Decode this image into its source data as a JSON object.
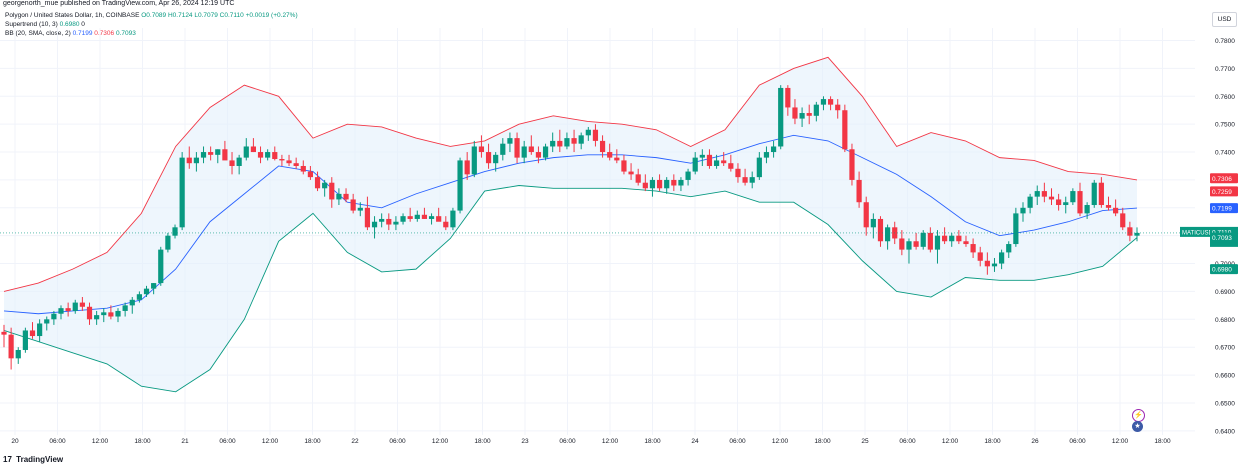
{
  "header": {
    "published": "georgenorth_mue published on TradingView.com, Apr 26, 2024 12:19 UTC"
  },
  "legend": {
    "symbol": "Polygon / United States Dollar, 1h, COINBASE",
    "ohlc": {
      "o": "O0.7089",
      "h": "H0.7124",
      "l": "L0.7079",
      "c": "C0.7110",
      "chg": "+0.0019 (+0.27%)"
    },
    "supertrend": {
      "label": "Supertrend (10, 3)",
      "value": "0.6980",
      "extra": "0"
    },
    "bb": {
      "label": "BB (20, SMA, close, 2)",
      "basis": "0.7199",
      "upper": "0.7306",
      "lower": "0.7093"
    }
  },
  "currency_button": "USD",
  "price_tags": {
    "symbol": "MATICUSD",
    "last": "0.7110",
    "countdown": "40:16",
    "bb_upper": "0.7306",
    "supertrend_red": "0.7259",
    "bb_basis": "0.7199",
    "bb_lower": "0.7093",
    "supertrend": "0.6980"
  },
  "footer": {
    "brand": "TradingView",
    "logo": "tv-logo"
  },
  "icons": [
    "lightning-icon",
    "us-flag-icon"
  ],
  "colors": {
    "up": "#089981",
    "down": "#f23645",
    "bb_upper": "#f23645",
    "bb_basis": "#2962ff",
    "bb_lower": "#089981",
    "fill_up": "#e6f4ea",
    "fill_down": "#fde6e8",
    "band_fill": "#e3f0fb"
  },
  "chart_data": {
    "type": "candlestick",
    "y_ticks": [
      "0.7800",
      "0.7700",
      "0.7600",
      "0.7500",
      "0.7400",
      "0.7300",
      "0.7200",
      "0.7100",
      "0.7000",
      "0.6900",
      "0.6800",
      "0.6700",
      "0.6600",
      "0.6500",
      "0.6400"
    ],
    "x_ticks": [
      "20",
      "06:00",
      "12:00",
      "18:00",
      "21",
      "06:00",
      "12:00",
      "18:00",
      "22",
      "06:00",
      "12:00",
      "18:00",
      "23",
      "06:00",
      "12:00",
      "18:00",
      "24",
      "06:00",
      "12:00",
      "18:00",
      "25",
      "06:00",
      "12:00",
      "18:00",
      "26",
      "06:00",
      "12:00",
      "18:00"
    ],
    "ylim": [
      0.6385,
      0.7845
    ],
    "candles": [
      [
        0.6755,
        0.678,
        0.67,
        0.6745
      ],
      [
        0.6745,
        0.677,
        0.662,
        0.666
      ],
      [
        0.666,
        0.67,
        0.664,
        0.669
      ],
      [
        0.669,
        0.677,
        0.668,
        0.676
      ],
      [
        0.676,
        0.679,
        0.673,
        0.674
      ],
      [
        0.674,
        0.68,
        0.672,
        0.6785
      ],
      [
        0.6785,
        0.681,
        0.676,
        0.68
      ],
      [
        0.68,
        0.683,
        0.678,
        0.682
      ],
      [
        0.682,
        0.685,
        0.68,
        0.684
      ],
      [
        0.684,
        0.686,
        0.681,
        0.683
      ],
      [
        0.683,
        0.687,
        0.682,
        0.686
      ],
      [
        0.686,
        0.688,
        0.683,
        0.6845
      ],
      [
        0.6845,
        0.686,
        0.678,
        0.68
      ],
      [
        0.68,
        0.683,
        0.678,
        0.6815
      ],
      [
        0.6815,
        0.684,
        0.679,
        0.6825
      ],
      [
        0.6825,
        0.685,
        0.68,
        0.681
      ],
      [
        0.681,
        0.684,
        0.679,
        0.683
      ],
      [
        0.683,
        0.686,
        0.681,
        0.685
      ],
      [
        0.685,
        0.688,
        0.682,
        0.687
      ],
      [
        0.687,
        0.69,
        0.686,
        0.689
      ],
      [
        0.689,
        0.692,
        0.688,
        0.691
      ],
      [
        0.691,
        0.693,
        0.689,
        0.693
      ],
      [
        0.693,
        0.706,
        0.692,
        0.705
      ],
      [
        0.705,
        0.711,
        0.704,
        0.71
      ],
      [
        0.71,
        0.714,
        0.709,
        0.713
      ],
      [
        0.713,
        0.74,
        0.712,
        0.738
      ],
      [
        0.738,
        0.742,
        0.734,
        0.736
      ],
      [
        0.736,
        0.74,
        0.733,
        0.738
      ],
      [
        0.738,
        0.742,
        0.736,
        0.74
      ],
      [
        0.74,
        0.742,
        0.737,
        0.739
      ],
      [
        0.739,
        0.741,
        0.736,
        0.741
      ],
      [
        0.741,
        0.744,
        0.738,
        0.737
      ],
      [
        0.737,
        0.74,
        0.732,
        0.735
      ],
      [
        0.735,
        0.739,
        0.732,
        0.738
      ],
      [
        0.738,
        0.745,
        0.737,
        0.742
      ],
      [
        0.742,
        0.745,
        0.74,
        0.74
      ],
      [
        0.74,
        0.742,
        0.736,
        0.738
      ],
      [
        0.738,
        0.741,
        0.737,
        0.74
      ],
      [
        0.74,
        0.742,
        0.737,
        0.7375
      ],
      [
        0.7375,
        0.739,
        0.735,
        0.737
      ],
      [
        0.737,
        0.739,
        0.735,
        0.736
      ],
      [
        0.736,
        0.738,
        0.734,
        0.735
      ],
      [
        0.735,
        0.737,
        0.732,
        0.733
      ],
      [
        0.733,
        0.735,
        0.73,
        0.731
      ],
      [
        0.731,
        0.733,
        0.726,
        0.727
      ],
      [
        0.727,
        0.73,
        0.724,
        0.729
      ],
      [
        0.729,
        0.731,
        0.72,
        0.723
      ],
      [
        0.723,
        0.727,
        0.721,
        0.725
      ],
      [
        0.725,
        0.727,
        0.722,
        0.723
      ],
      [
        0.723,
        0.725,
        0.718,
        0.719
      ],
      [
        0.719,
        0.722,
        0.717,
        0.72
      ],
      [
        0.72,
        0.724,
        0.712,
        0.713
      ],
      [
        0.713,
        0.717,
        0.709,
        0.715
      ],
      [
        0.715,
        0.718,
        0.713,
        0.716
      ],
      [
        0.716,
        0.718,
        0.712,
        0.714
      ],
      [
        0.714,
        0.717,
        0.712,
        0.715
      ],
      [
        0.715,
        0.718,
        0.714,
        0.717
      ],
      [
        0.717,
        0.72,
        0.715,
        0.716
      ],
      [
        0.716,
        0.719,
        0.715,
        0.7175
      ],
      [
        0.7175,
        0.72,
        0.716,
        0.716
      ],
      [
        0.716,
        0.718,
        0.714,
        0.717
      ],
      [
        0.717,
        0.72,
        0.716,
        0.715
      ],
      [
        0.715,
        0.717,
        0.712,
        0.713
      ],
      [
        0.713,
        0.72,
        0.712,
        0.719
      ],
      [
        0.719,
        0.738,
        0.718,
        0.737
      ],
      [
        0.737,
        0.74,
        0.73,
        0.732
      ],
      [
        0.732,
        0.744,
        0.731,
        0.742
      ],
      [
        0.742,
        0.746,
        0.738,
        0.74
      ],
      [
        0.74,
        0.743,
        0.734,
        0.736
      ],
      [
        0.736,
        0.74,
        0.733,
        0.739
      ],
      [
        0.739,
        0.745,
        0.737,
        0.743
      ],
      [
        0.743,
        0.747,
        0.74,
        0.745
      ],
      [
        0.745,
        0.747,
        0.736,
        0.738
      ],
      [
        0.738,
        0.744,
        0.736,
        0.742
      ],
      [
        0.742,
        0.746,
        0.739,
        0.74
      ],
      [
        0.74,
        0.742,
        0.736,
        0.738
      ],
      [
        0.738,
        0.743,
        0.737,
        0.742
      ],
      [
        0.742,
        0.747,
        0.74,
        0.744
      ],
      [
        0.744,
        0.748,
        0.74,
        0.742
      ],
      [
        0.742,
        0.747,
        0.741,
        0.745
      ],
      [
        0.745,
        0.748,
        0.74,
        0.743
      ],
      [
        0.743,
        0.747,
        0.741,
        0.746
      ],
      [
        0.746,
        0.749,
        0.744,
        0.748
      ],
      [
        0.748,
        0.75,
        0.742,
        0.744
      ],
      [
        0.744,
        0.746,
        0.738,
        0.74
      ],
      [
        0.74,
        0.743,
        0.737,
        0.738
      ],
      [
        0.738,
        0.741,
        0.736,
        0.737
      ],
      [
        0.737,
        0.739,
        0.732,
        0.733
      ],
      [
        0.733,
        0.736,
        0.73,
        0.732
      ],
      [
        0.732,
        0.734,
        0.728,
        0.729
      ],
      [
        0.729,
        0.732,
        0.726,
        0.727
      ],
      [
        0.727,
        0.731,
        0.724,
        0.73
      ],
      [
        0.73,
        0.732,
        0.726,
        0.727
      ],
      [
        0.727,
        0.731,
        0.725,
        0.73
      ],
      [
        0.73,
        0.732,
        0.726,
        0.728
      ],
      [
        0.728,
        0.731,
        0.726,
        0.73
      ],
      [
        0.73,
        0.734,
        0.728,
        0.733
      ],
      [
        0.733,
        0.74,
        0.732,
        0.738
      ],
      [
        0.738,
        0.741,
        0.735,
        0.739
      ],
      [
        0.739,
        0.741,
        0.734,
        0.735
      ],
      [
        0.735,
        0.739,
        0.734,
        0.737
      ],
      [
        0.737,
        0.74,
        0.735,
        0.736
      ],
      [
        0.736,
        0.739,
        0.733,
        0.734
      ],
      [
        0.734,
        0.736,
        0.729,
        0.731
      ],
      [
        0.731,
        0.734,
        0.728,
        0.729
      ],
      [
        0.729,
        0.733,
        0.727,
        0.731
      ],
      [
        0.731,
        0.74,
        0.73,
        0.738
      ],
      [
        0.738,
        0.742,
        0.736,
        0.74
      ],
      [
        0.74,
        0.744,
        0.738,
        0.742
      ],
      [
        0.742,
        0.764,
        0.741,
        0.763
      ],
      [
        0.763,
        0.764,
        0.753,
        0.756
      ],
      [
        0.756,
        0.759,
        0.75,
        0.752
      ],
      [
        0.752,
        0.756,
        0.749,
        0.754
      ],
      [
        0.754,
        0.757,
        0.75,
        0.753
      ],
      [
        0.753,
        0.758,
        0.751,
        0.757
      ],
      [
        0.757,
        0.76,
        0.755,
        0.759
      ],
      [
        0.759,
        0.76,
        0.755,
        0.757
      ],
      [
        0.757,
        0.759,
        0.752,
        0.755
      ],
      [
        0.755,
        0.757,
        0.74,
        0.741
      ],
      [
        0.741,
        0.743,
        0.728,
        0.73
      ],
      [
        0.73,
        0.733,
        0.72,
        0.722
      ],
      [
        0.722,
        0.724,
        0.71,
        0.713
      ],
      [
        0.713,
        0.718,
        0.709,
        0.716
      ],
      [
        0.716,
        0.717,
        0.706,
        0.708
      ],
      [
        0.708,
        0.714,
        0.705,
        0.713
      ],
      [
        0.713,
        0.715,
        0.707,
        0.709
      ],
      [
        0.709,
        0.712,
        0.703,
        0.705
      ],
      [
        0.705,
        0.709,
        0.7,
        0.708
      ],
      [
        0.708,
        0.711,
        0.705,
        0.706
      ],
      [
        0.706,
        0.712,
        0.705,
        0.711
      ],
      [
        0.711,
        0.713,
        0.704,
        0.705
      ],
      [
        0.705,
        0.712,
        0.7,
        0.71
      ],
      [
        0.71,
        0.713,
        0.707,
        0.708
      ],
      [
        0.708,
        0.711,
        0.706,
        0.71
      ],
      [
        0.71,
        0.712,
        0.707,
        0.708
      ],
      [
        0.708,
        0.71,
        0.706,
        0.707
      ],
      [
        0.707,
        0.709,
        0.702,
        0.704
      ],
      [
        0.704,
        0.706,
        0.699,
        0.701
      ],
      [
        0.701,
        0.704,
        0.696,
        0.699
      ],
      [
        0.699,
        0.702,
        0.697,
        0.7
      ],
      [
        0.7,
        0.705,
        0.698,
        0.704
      ],
      [
        0.704,
        0.708,
        0.702,
        0.707
      ],
      [
        0.707,
        0.72,
        0.706,
        0.718
      ],
      [
        0.718,
        0.722,
        0.715,
        0.72
      ],
      [
        0.72,
        0.725,
        0.718,
        0.724
      ],
      [
        0.724,
        0.728,
        0.721,
        0.726
      ],
      [
        0.726,
        0.729,
        0.722,
        0.724
      ],
      [
        0.724,
        0.727,
        0.721,
        0.723
      ],
      [
        0.723,
        0.725,
        0.719,
        0.721
      ],
      [
        0.721,
        0.724,
        0.718,
        0.722
      ],
      [
        0.722,
        0.727,
        0.721,
        0.726
      ],
      [
        0.726,
        0.729,
        0.717,
        0.718
      ],
      [
        0.718,
        0.722,
        0.716,
        0.721
      ],
      [
        0.721,
        0.73,
        0.72,
        0.729
      ],
      [
        0.729,
        0.731,
        0.72,
        0.721
      ],
      [
        0.721,
        0.724,
        0.719,
        0.72
      ],
      [
        0.72,
        0.723,
        0.717,
        0.718
      ],
      [
        0.718,
        0.72,
        0.712,
        0.713
      ],
      [
        0.713,
        0.715,
        0.708,
        0.71
      ],
      [
        0.71,
        0.713,
        0.708,
        0.711
      ]
    ],
    "series": [
      {
        "name": "BB upper",
        "color": "#f23645",
        "values": [
          0.69,
          0.693,
          0.698,
          0.704,
          0.718,
          0.742,
          0.756,
          0.764,
          0.76,
          0.745,
          0.75,
          0.749,
          0.745,
          0.742,
          0.744,
          0.75,
          0.753,
          0.751,
          0.75,
          0.748,
          0.742,
          0.748,
          0.764,
          0.77,
          0.774,
          0.76,
          0.742,
          0.747,
          0.744,
          0.738,
          0.737,
          0.733,
          0.732,
          0.73
        ]
      },
      {
        "name": "BB basis",
        "color": "#2962ff",
        "values": [
          0.683,
          0.682,
          0.683,
          0.684,
          0.687,
          0.698,
          0.715,
          0.725,
          0.735,
          0.733,
          0.722,
          0.72,
          0.725,
          0.729,
          0.733,
          0.736,
          0.738,
          0.739,
          0.739,
          0.738,
          0.736,
          0.739,
          0.743,
          0.746,
          0.744,
          0.738,
          0.732,
          0.724,
          0.715,
          0.71,
          0.712,
          0.715,
          0.719,
          0.7199
        ]
      },
      {
        "name": "BB lower",
        "color": "#089981",
        "values": [
          0.676,
          0.672,
          0.668,
          0.664,
          0.656,
          0.654,
          0.662,
          0.68,
          0.708,
          0.718,
          0.704,
          0.697,
          0.698,
          0.709,
          0.726,
          0.728,
          0.727,
          0.727,
          0.727,
          0.726,
          0.724,
          0.726,
          0.722,
          0.722,
          0.714,
          0.701,
          0.69,
          0.688,
          0.695,
          0.694,
          0.694,
          0.696,
          0.699,
          0.7093
        ]
      }
    ]
  }
}
